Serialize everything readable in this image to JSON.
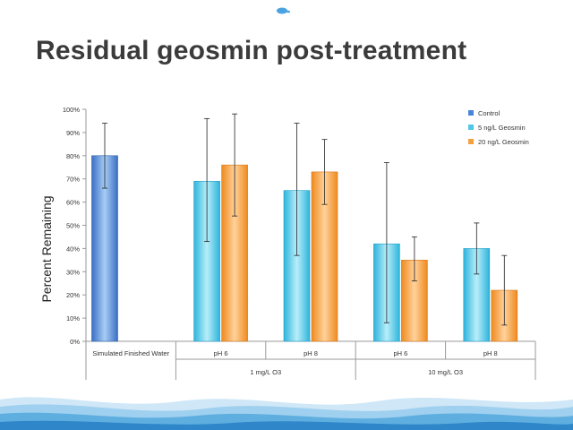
{
  "slide": {
    "title": "Residual geosmin post-treatment"
  },
  "chart_data": {
    "type": "bar",
    "ylabel": "Percent Remaining",
    "ylim": [
      0,
      100
    ],
    "y_ticks": [
      "0%",
      "10%",
      "20%",
      "30%",
      "40%",
      "50%",
      "60%",
      "70%",
      "80%",
      "90%",
      "100%"
    ],
    "categories": [
      "Simulated Finished Water",
      "pH 6",
      "pH 8",
      "pH 6",
      "pH 8"
    ],
    "groups": [
      {
        "label": "1 mg/L O3",
        "categories": [
          1,
          2
        ]
      },
      {
        "label": "10 mg/L O3",
        "categories": [
          3,
          4
        ]
      }
    ],
    "legend_position": "top-right",
    "series": [
      {
        "name": "Control",
        "color": "#4a86d8",
        "values": [
          80,
          null,
          null,
          null,
          null
        ],
        "error_low": [
          66,
          null,
          null,
          null,
          null
        ],
        "error_high": [
          94,
          null,
          null,
          null,
          null
        ]
      },
      {
        "name": "5 ng/L Geosmin",
        "color": "#4fc8e8",
        "values": [
          null,
          69,
          65,
          42,
          40
        ],
        "error_low": [
          null,
          43,
          37,
          8,
          29
        ],
        "error_high": [
          null,
          96,
          94,
          77,
          51
        ]
      },
      {
        "name": "20 ng/L Geosmin",
        "color": "#f5a040",
        "values": [
          null,
          76,
          73,
          35,
          22
        ],
        "error_low": [
          null,
          54,
          59,
          26,
          7
        ],
        "error_high": [
          null,
          98,
          87,
          45,
          37
        ]
      }
    ]
  }
}
